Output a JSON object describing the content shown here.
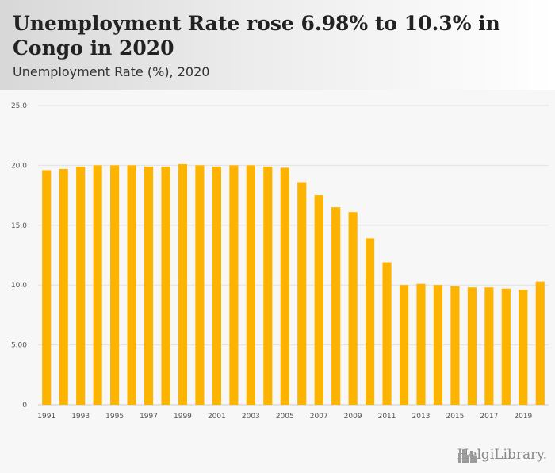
{
  "header": {
    "title": "Unemployment Rate rose 6.98% to 10.3% in Congo in 2020",
    "subtitle": "Unemployment Rate (%), 2020"
  },
  "branding": {
    "logo_text": "HelgiLibrary."
  },
  "colors": {
    "bar": "#FDB400",
    "grid": "#e2e2e2",
    "axis": "#cccccc"
  },
  "chart_data": {
    "type": "bar",
    "title": "Unemployment Rate rose 6.98% to 10.3% in Congo in 2020",
    "ylabel": "Unemployment Rate (%)",
    "xlabel": "",
    "ylim": [
      0,
      25
    ],
    "y_ticks": [
      "0",
      "5.00",
      "10.0",
      "15.0",
      "20.0",
      "25.0"
    ],
    "y_tick_values": [
      0,
      5,
      10,
      15,
      20,
      25
    ],
    "x_tick_labels": [
      "1991",
      "1993",
      "1995",
      "1997",
      "1999",
      "2001",
      "2003",
      "2005",
      "2007",
      "2009",
      "2011",
      "2013",
      "2015",
      "2017",
      "2019"
    ],
    "categories": [
      "1991",
      "1992",
      "1993",
      "1994",
      "1995",
      "1996",
      "1997",
      "1998",
      "1999",
      "2000",
      "2001",
      "2002",
      "2003",
      "2004",
      "2005",
      "2006",
      "2007",
      "2008",
      "2009",
      "2010",
      "2011",
      "2012",
      "2013",
      "2014",
      "2015",
      "2016",
      "2017",
      "2018",
      "2019",
      "2020"
    ],
    "values": [
      19.6,
      19.7,
      19.9,
      20.0,
      20.0,
      20.0,
      19.9,
      19.9,
      20.1,
      20.0,
      19.9,
      20.0,
      20.0,
      19.9,
      19.8,
      18.6,
      17.5,
      16.5,
      16.1,
      13.9,
      11.9,
      10.0,
      10.1,
      10.0,
      9.9,
      9.8,
      9.8,
      9.7,
      9.6,
      10.3
    ],
    "grid": true,
    "legend": "none"
  }
}
